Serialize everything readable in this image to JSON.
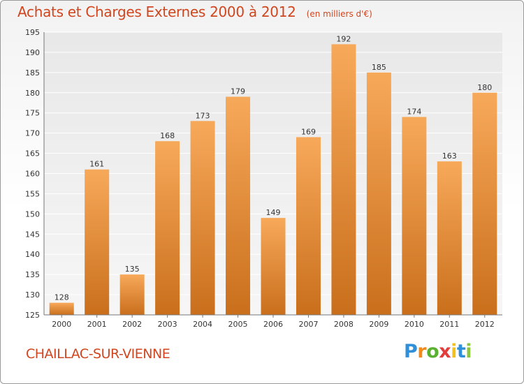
{
  "header": {
    "title": "Achats et Charges Externes 2000 à 2012",
    "unit_note": "(en milliers d'€)"
  },
  "footer": {
    "commune": "CHAILLAC-SUR-VIENNE",
    "logo_text": "Proxiti"
  },
  "colors": {
    "accent_text": "#d0461f",
    "bar_top": "#f7a95a",
    "bar_bottom": "#c96f1c"
  },
  "chart_data": {
    "type": "bar",
    "title": "Achats et Charges Externes 2000 à 2012",
    "subtitle": "(en milliers d'€)",
    "xlabel": "",
    "ylabel": "",
    "categories": [
      "2000",
      "2001",
      "2002",
      "2003",
      "2004",
      "2005",
      "2006",
      "2007",
      "2008",
      "2009",
      "2010",
      "2011",
      "2012"
    ],
    "values": [
      128,
      161,
      135,
      168,
      173,
      179,
      149,
      169,
      192,
      185,
      174,
      163,
      180
    ],
    "ylim": [
      125,
      195
    ],
    "yticks": [
      125,
      130,
      135,
      140,
      145,
      150,
      155,
      160,
      165,
      170,
      175,
      180,
      185,
      190,
      195
    ],
    "grid": true,
    "legend": "none"
  }
}
